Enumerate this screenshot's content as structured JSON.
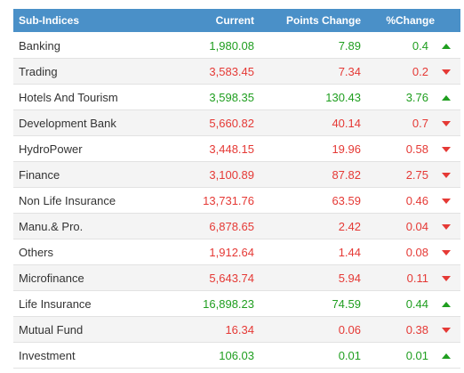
{
  "table": {
    "headers": [
      "Sub-Indices",
      "Current",
      "Points Change",
      "%Change"
    ],
    "rows": [
      {
        "name": "Banking",
        "current": "1,980.08",
        "points_change": "7.89",
        "percent_change": "0.4",
        "trend": "up"
      },
      {
        "name": "Trading",
        "current": "3,583.45",
        "points_change": "7.34",
        "percent_change": "0.2",
        "trend": "down"
      },
      {
        "name": "Hotels And Tourism",
        "current": "3,598.35",
        "points_change": "130.43",
        "percent_change": "3.76",
        "trend": "up"
      },
      {
        "name": "Development Bank",
        "current": "5,660.82",
        "points_change": "40.14",
        "percent_change": "0.7",
        "trend": "down"
      },
      {
        "name": "HydroPower",
        "current": "3,448.15",
        "points_change": "19.96",
        "percent_change": "0.58",
        "trend": "down"
      },
      {
        "name": "Finance",
        "current": "3,100.89",
        "points_change": "87.82",
        "percent_change": "2.75",
        "trend": "down"
      },
      {
        "name": "Non Life Insurance",
        "current": "13,731.76",
        "points_change": "63.59",
        "percent_change": "0.46",
        "trend": "down"
      },
      {
        "name": "Manu.& Pro.",
        "current": "6,878.65",
        "points_change": "2.42",
        "percent_change": "0.04",
        "trend": "down"
      },
      {
        "name": "Others",
        "current": "1,912.64",
        "points_change": "1.44",
        "percent_change": "0.08",
        "trend": "down"
      },
      {
        "name": "Microfinance",
        "current": "5,643.74",
        "points_change": "5.94",
        "percent_change": "0.11",
        "trend": "down"
      },
      {
        "name": "Life Insurance",
        "current": "16,898.23",
        "points_change": "74.59",
        "percent_change": "0.44",
        "trend": "up"
      },
      {
        "name": "Mutual Fund",
        "current": "16.34",
        "points_change": "0.06",
        "percent_change": "0.38",
        "trend": "down"
      },
      {
        "name": "Investment",
        "current": "106.03",
        "points_change": "0.01",
        "percent_change": "0.01",
        "trend": "up"
      }
    ]
  }
}
